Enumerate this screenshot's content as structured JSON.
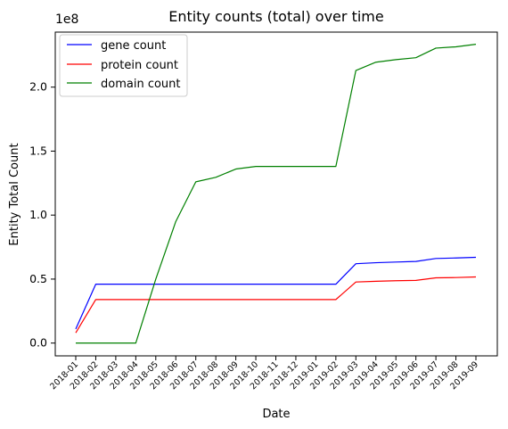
{
  "chart_data": {
    "type": "line",
    "title": "Entity counts (total) over time",
    "xlabel": "Date",
    "ylabel": "Entity Total Count",
    "y_multiplier": "1e8",
    "categories": [
      "2018-01",
      "2018-02",
      "2018-03",
      "2018-04",
      "2018-05",
      "2018-06",
      "2018-07",
      "2018-08",
      "2018-09",
      "2018-10",
      "2018-11",
      "2018-12",
      "2019-01",
      "2019-02",
      "2019-03",
      "2019-04",
      "2019-05",
      "2019-06",
      "2019-07",
      "2019-08",
      "2019-09"
    ],
    "series": [
      {
        "name": "gene count",
        "color": "#0000ff",
        "values": [
          11000000,
          46000000,
          46000000,
          46000000,
          46000000,
          46000000,
          46000000,
          46000000,
          46000000,
          46000000,
          46000000,
          46000000,
          46000000,
          46000000,
          62000000,
          62800000,
          63300000,
          63800000,
          66100000,
          66500000,
          67000000
        ]
      },
      {
        "name": "protein count",
        "color": "#ff0000",
        "values": [
          8000000,
          34000000,
          34000000,
          34000000,
          34000000,
          34000000,
          34000000,
          34000000,
          34000000,
          34000000,
          34000000,
          34000000,
          34000000,
          34000000,
          47700000,
          48300000,
          48700000,
          49000000,
          51000000,
          51200000,
          51700000
        ]
      },
      {
        "name": "domain count",
        "color": "#008000",
        "values": [
          0,
          0,
          0,
          0,
          50000000,
          95000000,
          126000000,
          129500000,
          136000000,
          138000000,
          138000000,
          138000000,
          138000000,
          138000000,
          213000000,
          219500000,
          221500000,
          223000000,
          230500000,
          231500000,
          233500000
        ]
      }
    ],
    "ylim": [
      -10000000,
      243000000
    ],
    "yticks": [
      0,
      50000000,
      100000000,
      150000000,
      200000000
    ],
    "ytick_labels": [
      "0.0",
      "0.5",
      "1.0",
      "1.5",
      "2.0"
    ],
    "grid": false,
    "legend": "top-left"
  }
}
